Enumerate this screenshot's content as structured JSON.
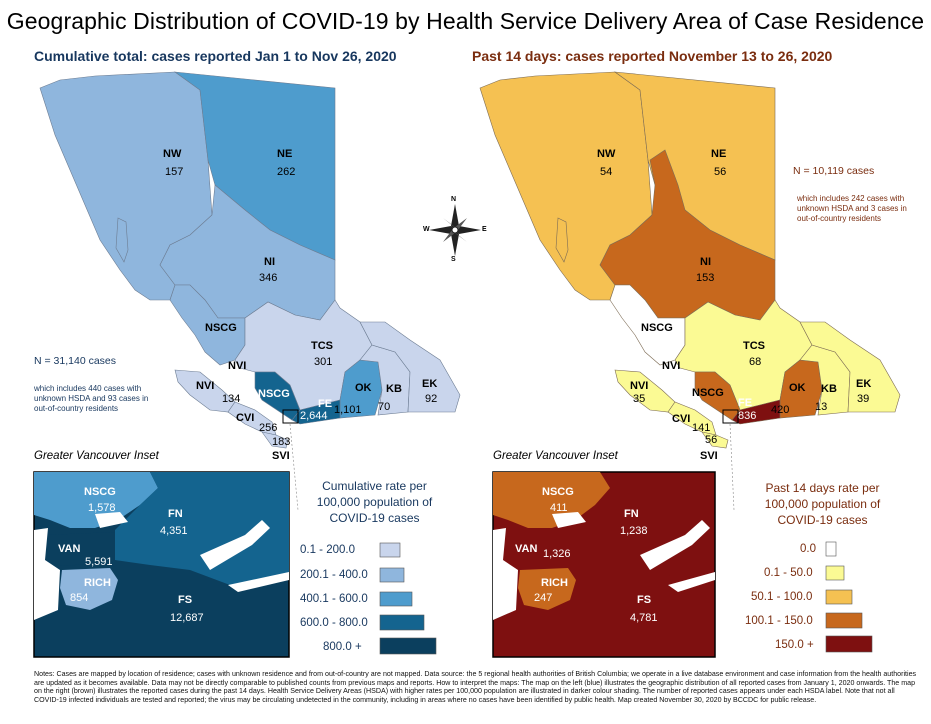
{
  "title": "Geographic Distribution of COVID-19 by Health Service Delivery Area of Case Residence",
  "left_panel": {
    "subtitle": "Cumulative total: cases reported Jan 1 to Nov 26, 2020",
    "total": "N = 31,140 cases",
    "note": "which includes 440 cases with unknown HSDA and 93 cases in out-of-country residents",
    "regions": [
      {
        "code": "NW",
        "value": "157"
      },
      {
        "code": "NE",
        "value": "262"
      },
      {
        "code": "NI",
        "value": "346"
      },
      {
        "code": "NSCG",
        "value": ""
      },
      {
        "code": "TCS",
        "value": "301"
      },
      {
        "code": "NVI",
        "value": "134"
      },
      {
        "code": "NSCG",
        "value": ""
      },
      {
        "code": "OK",
        "value": "1,101"
      },
      {
        "code": "KB",
        "value": "70"
      },
      {
        "code": "EK",
        "value": "92"
      },
      {
        "code": "FE",
        "value": "2,644"
      },
      {
        "code": "CVI",
        "value": "256"
      },
      {
        "code": "",
        "value": "183"
      },
      {
        "code": "SVI",
        "value": ""
      }
    ],
    "inset_title": "Greater Vancouver Inset",
    "inset": [
      {
        "code": "NSCG",
        "value": "1,578"
      },
      {
        "code": "FN",
        "value": "4,351"
      },
      {
        "code": "VAN",
        "value": "5,591"
      },
      {
        "code": "RICH",
        "value": "854"
      },
      {
        "code": "FS",
        "value": "12,687"
      }
    ],
    "legend_title": "Cumulative rate per 100,000 population of COVID-19 cases",
    "legend": [
      {
        "label": "0.1 - 200.0",
        "color": "#c9d5ec"
      },
      {
        "label": "200.1 - 400.0",
        "color": "#8fb6dd"
      },
      {
        "label": "400.1 - 600.0",
        "color": "#4e9ccd"
      },
      {
        "label": "600.0 - 800.0",
        "color": "#14648f"
      },
      {
        "label": "800.0 +",
        "color": "#0b3f5e"
      }
    ]
  },
  "right_panel": {
    "subtitle": "Past 14 days: cases reported November 13 to 26, 2020",
    "total": "N = 10,119 cases",
    "note": "which includes 242 cases with unknown HSDA and 3 cases in out-of-country residents",
    "regions": [
      {
        "code": "NW",
        "value": "54"
      },
      {
        "code": "NE",
        "value": "56"
      },
      {
        "code": "NI",
        "value": "153"
      },
      {
        "code": "NSCG",
        "value": ""
      },
      {
        "code": "TCS",
        "value": "68"
      },
      {
        "code": "NVI",
        "value": ""
      },
      {
        "code": "NVI",
        "value": "35"
      },
      {
        "code": "NSCG",
        "value": ""
      },
      {
        "code": "OK",
        "value": "420"
      },
      {
        "code": "KB",
        "value": "13"
      },
      {
        "code": "EK",
        "value": "39"
      },
      {
        "code": "FE",
        "value": "836"
      },
      {
        "code": "CVI",
        "value": "141"
      },
      {
        "code": "",
        "value": "56"
      },
      {
        "code": "SVI",
        "value": ""
      }
    ],
    "inset_title": "Greater Vancouver Inset",
    "inset": [
      {
        "code": "NSCG",
        "value": "411"
      },
      {
        "code": "FN",
        "value": "1,238"
      },
      {
        "code": "VAN",
        "value": "1,326"
      },
      {
        "code": "RICH",
        "value": "247"
      },
      {
        "code": "FS",
        "value": "4,781"
      }
    ],
    "legend_title": "Past 14 days rate per 100,000 population of COVID-19 cases",
    "legend": [
      {
        "label": "0.0",
        "color": "#ffffff"
      },
      {
        "label": "0.1 - 50.0",
        "color": "#fbfa94"
      },
      {
        "label": "50.1 - 100.0",
        "color": "#f5c152"
      },
      {
        "label": "100.1 - 150.0",
        "color": "#c7681d"
      },
      {
        "label": "150.0 +",
        "color": "#7e1010"
      }
    ]
  },
  "compass": {
    "n": "N",
    "s": "S",
    "e": "E",
    "w": "W"
  },
  "notes": "Notes: Cases are mapped by location of residence; cases with unknown residence and from out-of-country are not mapped. Data source: the 5 regional health authorities of British Columbia; we operate in a live database environment and case information from the health authorities are updated as it becomes available. Data may not be directly comparable to published counts from previous maps and reports. How to interpret the maps: The map on the left (blue) illustrates the geographic distribution of all reported cases from January 1, 2020 onwards. The map on the right (brown) illustrates the reported cases during the past 14 days. Health Service Delivery Areas (HSDA) with higher rates per 100,000 population are illustrated in darker colour shading. The number of reported cases appears under each HSDA label. Note that not all COVID-19 infected individuals are tested and reported; the virus may be circulating undetected in the community, including in areas where no cases have been identified by public health. Map created November 30, 2020 by BCCDC for public release."
}
